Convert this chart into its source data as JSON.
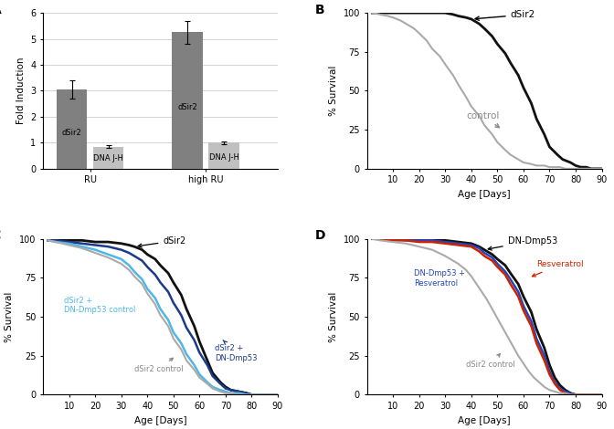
{
  "panel_A": {
    "bar_groups": [
      {
        "label": "RU",
        "bars": [
          {
            "name": "dSir2",
            "value": 3.05,
            "err": 0.35,
            "color": "#808080"
          },
          {
            "name": "DNA J-H",
            "value": 0.85,
            "err": 0.05,
            "color": "#c0c0c0"
          }
        ]
      },
      {
        "label": "high RU",
        "bars": [
          {
            "name": "dSir2",
            "value": 5.25,
            "err": 0.45,
            "color": "#808080"
          },
          {
            "name": "DNA J-H",
            "value": 1.0,
            "err": 0.05,
            "color": "#c0c0c0"
          }
        ]
      }
    ],
    "ylabel": "Fold Induction",
    "ylim": [
      0,
      6
    ],
    "yticks": [
      0,
      1,
      2,
      3,
      4,
      5,
      6
    ]
  },
  "panel_B": {
    "dSir2_x": [
      2,
      5,
      10,
      15,
      20,
      25,
      27,
      30,
      33,
      35,
      38,
      40,
      43,
      45,
      48,
      50,
      53,
      55,
      58,
      60,
      63,
      65,
      68,
      70,
      73,
      75,
      78,
      80,
      82,
      84,
      86,
      88,
      90
    ],
    "dSir2_y": [
      100,
      100,
      100,
      100,
      100,
      100,
      100,
      100,
      99,
      98,
      97,
      96,
      93,
      90,
      85,
      80,
      74,
      68,
      60,
      52,
      42,
      32,
      22,
      14,
      9,
      6,
      4,
      2,
      1,
      1,
      0,
      0,
      0
    ],
    "ctrl_x": [
      2,
      5,
      8,
      10,
      13,
      15,
      18,
      20,
      23,
      25,
      28,
      30,
      33,
      35,
      38,
      40,
      43,
      45,
      48,
      50,
      53,
      55,
      58,
      60,
      63,
      65,
      68,
      70,
      72,
      74,
      76,
      78,
      80,
      82,
      84,
      86,
      88,
      90
    ],
    "ctrl_y": [
      100,
      99,
      98,
      97,
      95,
      93,
      90,
      87,
      82,
      77,
      72,
      67,
      60,
      54,
      46,
      40,
      34,
      28,
      22,
      17,
      12,
      9,
      6,
      4,
      3,
      2,
      2,
      1,
      1,
      1,
      0,
      0,
      0,
      0,
      0,
      0,
      0,
      0
    ],
    "dSir2_color": "#111111",
    "ctrl_color": "#aaaaaa",
    "dSir2_lw": 2.0,
    "ctrl_lw": 1.5,
    "xlabel": "Age [Days]",
    "ylabel": "% Survival",
    "xlim": [
      0,
      90
    ],
    "ylim": [
      0,
      100
    ],
    "xticks": [
      10,
      20,
      30,
      40,
      50,
      60,
      70,
      80,
      90
    ],
    "yticks": [
      0,
      25,
      50,
      75,
      100
    ]
  },
  "panel_C": {
    "dSir2_x": [
      2,
      5,
      10,
      15,
      20,
      25,
      30,
      33,
      35,
      38,
      40,
      43,
      45,
      48,
      50,
      53,
      55,
      58,
      60,
      63,
      65,
      68,
      70,
      72,
      75,
      78,
      80,
      83,
      85,
      88,
      90
    ],
    "dSir2_y": [
      99,
      99,
      99,
      99,
      98,
      98,
      97,
      96,
      95,
      93,
      90,
      87,
      83,
      78,
      72,
      64,
      55,
      44,
      34,
      22,
      14,
      8,
      5,
      3,
      2,
      1,
      0,
      0,
      0,
      0,
      0
    ],
    "dSir2DN_x": [
      2,
      5,
      10,
      15,
      20,
      25,
      30,
      33,
      35,
      38,
      40,
      43,
      45,
      48,
      50,
      53,
      55,
      58,
      60,
      63,
      65,
      68,
      70,
      72,
      75,
      78,
      80,
      83,
      85,
      88,
      90
    ],
    "dSir2DN_y": [
      99,
      99,
      98,
      97,
      96,
      95,
      93,
      91,
      89,
      86,
      82,
      77,
      72,
      66,
      59,
      51,
      43,
      35,
      27,
      19,
      12,
      7,
      4,
      3,
      2,
      1,
      0,
      0,
      0,
      0,
      0
    ],
    "dSir2DNctrl_x": [
      2,
      5,
      10,
      15,
      20,
      25,
      30,
      33,
      35,
      38,
      40,
      43,
      45,
      48,
      50,
      53,
      55,
      58,
      60,
      63,
      65,
      68,
      70,
      72,
      75,
      78,
      80,
      83,
      85,
      88,
      90
    ],
    "dSir2DNctrl_y": [
      99,
      98,
      97,
      95,
      93,
      90,
      87,
      83,
      79,
      74,
      68,
      62,
      55,
      48,
      40,
      33,
      26,
      19,
      13,
      8,
      5,
      3,
      2,
      1,
      1,
      0,
      0,
      0,
      0,
      0,
      0
    ],
    "dSir2ctrl_x": [
      2,
      5,
      10,
      15,
      20,
      25,
      30,
      33,
      35,
      38,
      40,
      43,
      45,
      48,
      50,
      53,
      55,
      58,
      60,
      63,
      65,
      68,
      70,
      72,
      75,
      78,
      80,
      83,
      85,
      88,
      90
    ],
    "dSir2ctrl_y": [
      99,
      98,
      96,
      94,
      91,
      88,
      84,
      80,
      76,
      71,
      65,
      58,
      51,
      44,
      36,
      29,
      22,
      16,
      11,
      7,
      4,
      2,
      1,
      1,
      0,
      0,
      0,
      0,
      0,
      0,
      0
    ],
    "dSir2_color": "#111111",
    "dSir2DN_color": "#1a3a8a",
    "dSir2DNctrl_color": "#4db8e8",
    "dSir2ctrl_color": "#aaaaaa",
    "dSir2_lw": 2.0,
    "dSir2DN_lw": 1.8,
    "dSir2DNctrl_lw": 1.8,
    "dSir2ctrl_lw": 1.5,
    "xlabel": "Age [Days]",
    "ylabel": "% Survival",
    "xlim": [
      0,
      90
    ],
    "ylim": [
      0,
      100
    ],
    "xticks": [
      10,
      20,
      30,
      40,
      50,
      60,
      70,
      80,
      90
    ],
    "yticks": [
      0,
      25,
      50,
      75,
      100
    ]
  },
  "panel_D": {
    "DNDmp53_x": [
      2,
      5,
      10,
      15,
      20,
      25,
      30,
      35,
      40,
      43,
      45,
      48,
      50,
      53,
      55,
      58,
      60,
      63,
      65,
      68,
      70,
      72,
      74,
      76,
      78,
      80,
      82,
      84,
      86,
      88,
      90
    ],
    "DNDmp53_y": [
      100,
      100,
      100,
      100,
      100,
      99,
      99,
      98,
      97,
      95,
      93,
      90,
      87,
      83,
      78,
      71,
      63,
      53,
      42,
      30,
      19,
      11,
      6,
      3,
      1,
      0,
      0,
      0,
      0,
      0,
      0
    ],
    "DNDmp53Resv_x": [
      2,
      5,
      10,
      15,
      20,
      25,
      30,
      35,
      40,
      43,
      45,
      48,
      50,
      53,
      55,
      58,
      60,
      63,
      65,
      68,
      70,
      72,
      74,
      76,
      78,
      80,
      82,
      84,
      86,
      88,
      90
    ],
    "DNDmp53Resv_y": [
      100,
      100,
      100,
      99,
      99,
      99,
      98,
      97,
      96,
      94,
      91,
      88,
      84,
      79,
      74,
      66,
      57,
      47,
      36,
      25,
      15,
      8,
      4,
      2,
      1,
      0,
      0,
      0,
      0,
      0,
      0
    ],
    "Resv_x": [
      2,
      5,
      10,
      15,
      20,
      25,
      30,
      35,
      40,
      43,
      45,
      48,
      50,
      53,
      55,
      58,
      60,
      63,
      65,
      68,
      70,
      72,
      74,
      76,
      78,
      80,
      82,
      84,
      86,
      88,
      90
    ],
    "Resv_y": [
      100,
      100,
      99,
      99,
      98,
      98,
      97,
      96,
      95,
      92,
      89,
      86,
      82,
      77,
      71,
      63,
      54,
      44,
      33,
      22,
      13,
      7,
      3,
      1,
      0,
      0,
      0,
      0,
      0,
      0,
      0
    ],
    "dSir2ctrl_x": [
      2,
      5,
      10,
      15,
      20,
      25,
      30,
      35,
      38,
      40,
      42,
      44,
      46,
      48,
      50,
      52,
      54,
      56,
      58,
      60,
      62,
      64,
      66,
      68,
      70,
      72,
      74,
      76,
      78,
      80,
      82,
      84,
      86,
      88,
      90
    ],
    "dSir2ctrl_y": [
      100,
      99,
      98,
      97,
      95,
      93,
      89,
      84,
      80,
      76,
      71,
      66,
      61,
      55,
      49,
      43,
      37,
      31,
      25,
      20,
      15,
      11,
      8,
      5,
      3,
      2,
      1,
      1,
      0,
      0,
      0,
      0,
      0,
      0,
      0
    ],
    "DNDmp53_color": "#111111",
    "DNDmp53Resv_color": "#2244bb",
    "Resv_color": "#cc2200",
    "dSir2ctrl_color": "#aaaaaa",
    "DNDmp53_lw": 2.0,
    "DNDmp53Resv_lw": 1.8,
    "Resv_lw": 1.8,
    "dSir2ctrl_lw": 1.5,
    "xlabel": "Age [Days]",
    "ylabel": "% Survival",
    "xlim": [
      0,
      90
    ],
    "ylim": [
      0,
      100
    ],
    "xticks": [
      10,
      20,
      30,
      40,
      50,
      60,
      70,
      80,
      90
    ],
    "yticks": [
      0,
      25,
      50,
      75,
      100
    ]
  }
}
